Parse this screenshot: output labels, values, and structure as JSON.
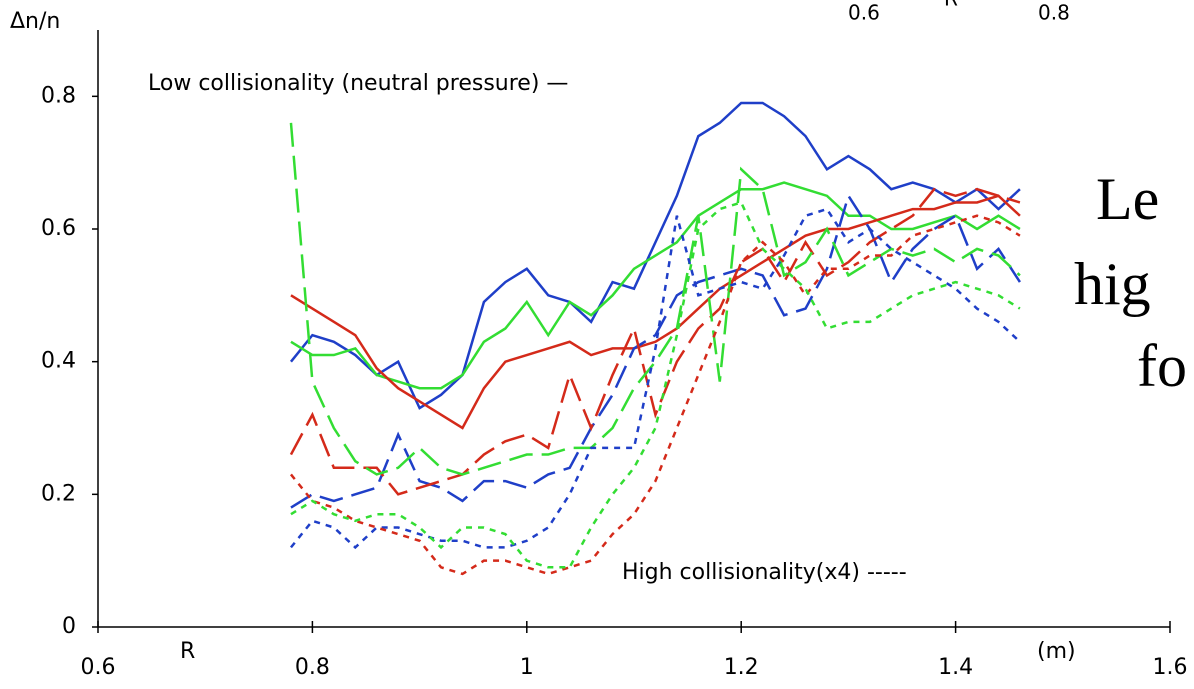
{
  "chart_data": {
    "type": "line",
    "y_label": "Δn/n",
    "x_label": "R",
    "x_unit": "(m)",
    "annotations": [
      "Low collisionality (neutral pressure) —",
      "High collisionality(x4) -----"
    ],
    "cropped_texts": [
      "0.6",
      "R",
      "0.8",
      "Le",
      "hig",
      "fo"
    ],
    "x": [
      0.78,
      0.8,
      0.82,
      0.84,
      0.86,
      0.88,
      0.9,
      0.92,
      0.94,
      0.96,
      0.98,
      1.0,
      1.02,
      1.04,
      1.06,
      1.08,
      1.1,
      1.12,
      1.14,
      1.16,
      1.18,
      1.2,
      1.22,
      1.24,
      1.26,
      1.28,
      1.3,
      1.32,
      1.34,
      1.36,
      1.38,
      1.4,
      1.42,
      1.44,
      1.46
    ],
    "series": [
      {
        "color": "#1f3fc8",
        "dash": "solid",
        "values": [
          0.4,
          0.44,
          0.43,
          0.41,
          0.38,
          0.4,
          0.33,
          0.35,
          0.38,
          0.49,
          0.52,
          0.54,
          0.5,
          0.49,
          0.46,
          0.52,
          0.51,
          0.58,
          0.65,
          0.74,
          0.76,
          0.79,
          0.79,
          0.77,
          0.74,
          0.69,
          0.71,
          0.69,
          0.66,
          0.67,
          0.66,
          0.64,
          0.66,
          0.63,
          0.66
        ]
      },
      {
        "color": "#33dd33",
        "dash": "solid",
        "values": [
          0.43,
          0.41,
          0.41,
          0.42,
          0.38,
          0.37,
          0.36,
          0.36,
          0.38,
          0.43,
          0.45,
          0.49,
          0.44,
          0.49,
          0.47,
          0.5,
          0.54,
          0.56,
          0.58,
          0.62,
          0.64,
          0.66,
          0.66,
          0.67,
          0.66,
          0.65,
          0.62,
          0.62,
          0.6,
          0.6,
          0.61,
          0.62,
          0.6,
          0.62,
          0.6
        ]
      },
      {
        "color": "#d42a1a",
        "dash": "solid",
        "values": [
          0.5,
          0.48,
          0.46,
          0.44,
          0.39,
          0.36,
          0.34,
          0.32,
          0.3,
          0.36,
          0.4,
          0.41,
          0.42,
          0.43,
          0.41,
          0.42,
          0.42,
          0.43,
          0.45,
          0.48,
          0.51,
          0.53,
          0.55,
          0.57,
          0.59,
          0.6,
          0.6,
          0.61,
          0.62,
          0.63,
          0.63,
          0.64,
          0.64,
          0.65,
          0.62
        ]
      },
      {
        "color": "#1f3fc8",
        "dash": "dashed",
        "values": [
          0.18,
          0.2,
          0.19,
          0.2,
          0.21,
          0.29,
          0.22,
          0.21,
          0.19,
          0.22,
          0.22,
          0.21,
          0.23,
          0.24,
          0.3,
          0.35,
          0.42,
          0.44,
          0.5,
          0.52,
          0.53,
          0.54,
          0.53,
          0.47,
          0.48,
          0.54,
          0.65,
          0.6,
          0.52,
          0.57,
          0.6,
          0.62,
          0.54,
          0.57,
          0.52
        ]
      },
      {
        "color": "#d42a1a",
        "dash": "dashed",
        "values": [
          0.26,
          0.32,
          0.24,
          0.24,
          0.24,
          0.2,
          0.21,
          0.22,
          0.23,
          0.26,
          0.28,
          0.29,
          0.27,
          0.38,
          0.3,
          0.38,
          0.45,
          0.32,
          0.4,
          0.45,
          0.48,
          0.55,
          0.57,
          0.52,
          0.58,
          0.53,
          0.55,
          0.58,
          0.6,
          0.62,
          0.66,
          0.65,
          0.66,
          0.65,
          0.64
        ]
      },
      {
        "color": "#33dd33",
        "dash": "dashed",
        "values": [
          0.76,
          0.37,
          0.3,
          0.25,
          0.23,
          0.24,
          0.27,
          0.24,
          0.23,
          0.24,
          0.25,
          0.26,
          0.26,
          0.27,
          0.27,
          0.3,
          0.36,
          0.4,
          0.45,
          0.62,
          0.37,
          0.69,
          0.66,
          0.53,
          0.55,
          0.6,
          0.53,
          0.55,
          0.57,
          0.56,
          0.57,
          0.55,
          0.57,
          0.56,
          0.53
        ]
      },
      {
        "color": "#1f3fc8",
        "dash": "dotted",
        "values": [
          0.12,
          0.16,
          0.15,
          0.12,
          0.15,
          0.15,
          0.14,
          0.13,
          0.13,
          0.12,
          0.12,
          0.13,
          0.15,
          0.2,
          0.27,
          0.27,
          0.27,
          0.42,
          0.62,
          0.5,
          0.51,
          0.52,
          0.51,
          0.56,
          0.62,
          0.63,
          0.58,
          0.6,
          0.57,
          0.55,
          0.53,
          0.51,
          0.48,
          0.46,
          0.43
        ]
      },
      {
        "color": "#d42a1a",
        "dash": "dotted",
        "values": [
          0.23,
          0.19,
          0.18,
          0.16,
          0.15,
          0.14,
          0.13,
          0.09,
          0.08,
          0.1,
          0.1,
          0.09,
          0.08,
          0.09,
          0.1,
          0.14,
          0.17,
          0.22,
          0.3,
          0.38,
          0.46,
          0.55,
          0.58,
          0.55,
          0.5,
          0.54,
          0.54,
          0.56,
          0.56,
          0.59,
          0.6,
          0.61,
          0.62,
          0.61,
          0.59
        ]
      },
      {
        "color": "#33dd33",
        "dash": "dotted",
        "values": [
          0.17,
          0.19,
          0.17,
          0.16,
          0.17,
          0.17,
          0.15,
          0.12,
          0.15,
          0.15,
          0.14,
          0.1,
          0.09,
          0.09,
          0.15,
          0.2,
          0.24,
          0.3,
          0.44,
          0.6,
          0.63,
          0.64,
          0.57,
          0.54,
          0.51,
          0.45,
          0.46,
          0.46,
          0.48,
          0.5,
          0.51,
          0.52,
          0.51,
          0.5,
          0.48
        ]
      }
    ],
    "xlim": [
      0.6,
      1.6
    ],
    "xticks": [
      0.6,
      0.8,
      1,
      1.2,
      1.4,
      1.6
    ],
    "ylim": [
      0,
      0.9
    ],
    "yticks": [
      0,
      0.2,
      0.4,
      0.6,
      0.8
    ],
    "grid": false
  }
}
